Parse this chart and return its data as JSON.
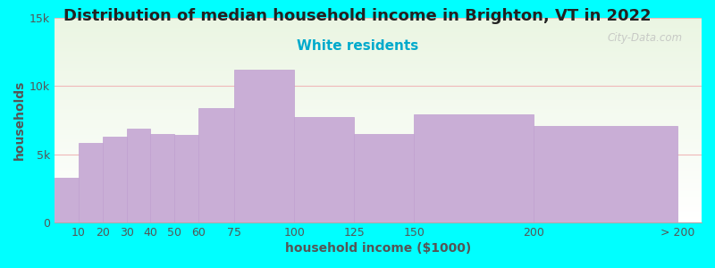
{
  "title": "Distribution of median household income in Brighton, VT in 2022",
  "subtitle": "White residents",
  "xlabel": "household income ($1000)",
  "ylabel": "households",
  "background_color": "#00FFFF",
  "bar_color": "#c9aed6",
  "bar_edge_color": "#c0a0d0",
  "grid_color": "#f0b8b8",
  "categories": [
    "10",
    "20",
    "30",
    "40",
    "50",
    "60",
    "75",
    "100",
    "125",
    "150",
    "200",
    "> 200"
  ],
  "values": [
    3300,
    5800,
    6300,
    6900,
    6500,
    6400,
    8400,
    11200,
    7700,
    6500,
    7900,
    7100
  ],
  "bar_lefts": [
    0,
    10,
    20,
    30,
    40,
    50,
    60,
    75,
    100,
    125,
    150,
    200
  ],
  "bar_widths": [
    10,
    10,
    10,
    10,
    10,
    10,
    15,
    25,
    25,
    25,
    50,
    60
  ],
  "xtick_positions": [
    10,
    20,
    30,
    40,
    50,
    60,
    75,
    100,
    125,
    150,
    200,
    260
  ],
  "xtick_labels": [
    "10",
    "20",
    "30",
    "40",
    "50",
    "60",
    "75",
    "100",
    "125",
    "150",
    "200",
    "> 200"
  ],
  "xlim": [
    0,
    270
  ],
  "ylim": [
    0,
    15000
  ],
  "yticks": [
    0,
    5000,
    10000,
    15000
  ],
  "ytick_labels": [
    "0",
    "5k",
    "10k",
    "15k"
  ],
  "title_fontsize": 13,
  "subtitle_fontsize": 11,
  "subtitle_color": "#00AACC",
  "axis_label_fontsize": 10,
  "tick_fontsize": 9,
  "watermark": "City-Data.com"
}
